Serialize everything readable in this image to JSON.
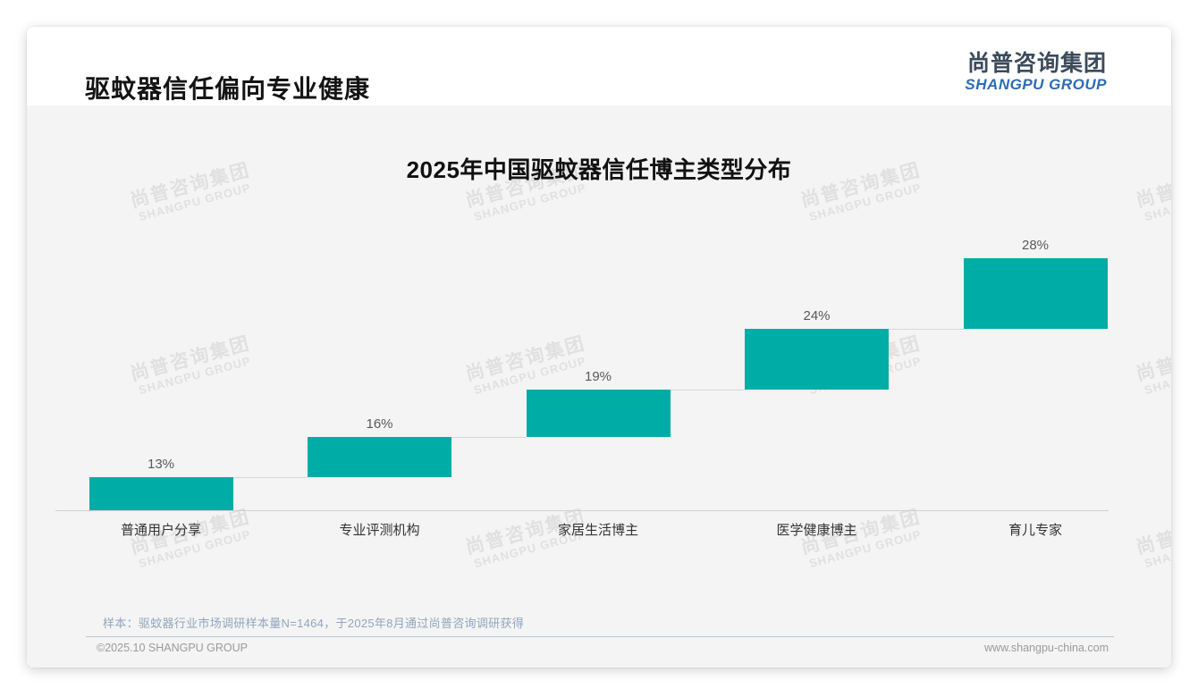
{
  "page": {
    "title": "驱蚊器信任偏向专业健康"
  },
  "logo": {
    "cn": "尚普咨询集团",
    "en": "SHANGPU GROUP"
  },
  "watermark": {
    "cn": "尚普咨询集团",
    "en": "SHANGPU GROUP"
  },
  "chart_data": {
    "type": "bar",
    "variant": "waterfall",
    "title": "2025年中国驱蚊器信任博主类型分布",
    "categories": [
      "普通用户分享",
      "专业评测机构",
      "家居生活博主",
      "医学健康博主",
      "育儿专家"
    ],
    "values": [
      13,
      16,
      19,
      24,
      28
    ],
    "unit": "%",
    "label_format": "{v}%",
    "bar_color": "#00ada6",
    "ylim": [
      0,
      100
    ],
    "grid": false,
    "legend": false,
    "xlabel": "",
    "ylabel": ""
  },
  "footer": {
    "note": "样本：驱蚊器行业市场调研样本量N=1464，于2025年8月通过尚普咨询调研获得",
    "copyright": "©2025.10 SHANGPU GROUP",
    "website": "www.shangpu-china.com"
  },
  "colors": {
    "accent": "#00ada6",
    "logo_cn": "#3c4b5c",
    "logo_en": "#2e6cb4",
    "note_text": "#92a5bc",
    "body_bg": "#f4f4f4"
  }
}
